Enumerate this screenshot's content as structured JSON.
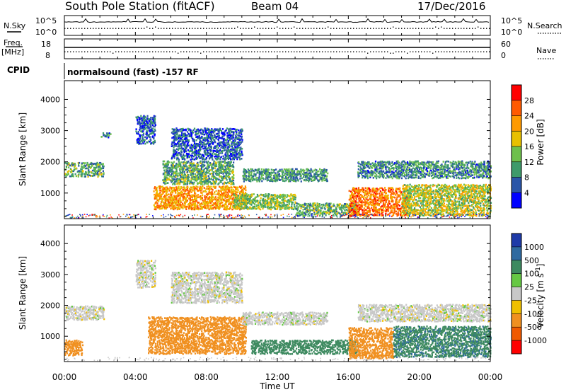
{
  "header": {
    "title": "South Pole Station (fitACF)",
    "beam": "Beam 04",
    "date": "17/Dec/2016"
  },
  "strip_panels": {
    "nsky": {
      "label": "N.Sky",
      "tick_top": "10^5",
      "tick_bottom": "10^0"
    },
    "nsearch": {
      "label": "N.Search",
      "tick_top": "10^5",
      "tick_bottom": "10^0"
    },
    "freq": {
      "label_line1": "Freq.",
      "label_line2": "[MHz]",
      "tick_top": "18",
      "tick_bottom": "8"
    },
    "nave": {
      "label": "Nave",
      "tick_top": "60",
      "tick_bottom": "0"
    },
    "cpid": {
      "label": "CPID",
      "value": "normalsound (fast) -157 RF"
    }
  },
  "x_axis": {
    "label": "Time UT",
    "ticks": [
      "00:00",
      "04:00",
      "08:00",
      "12:00",
      "16:00",
      "20:00",
      "00:00"
    ]
  },
  "power_panel": {
    "ylabel": "Slant Range [km]",
    "colorbar_label": "Power [dB]",
    "colorbar_ticks": [
      "28",
      "24",
      "20",
      "16",
      "12",
      "8",
      "4"
    ],
    "colorbar_colors": [
      "#ff0000",
      "#ff5a00",
      "#ff9a00",
      "#e8c000",
      "#6ec04c",
      "#3e9a6a",
      "#2a55a8",
      "#0000ff"
    ]
  },
  "velocity_panel": {
    "ylabel": "Slant Range [km]",
    "colorbar_label": "Velocity [m s",
    "colorbar_label_sup": "-1",
    "colorbar_label_end": "]",
    "colorbar_ticks": [
      "1000",
      "500",
      "100",
      "25",
      "-25",
      "-100",
      "-500",
      "-1000"
    ],
    "colorbar_colors": [
      "#1e3aa8",
      "#2f6aa0",
      "#3e8a60",
      "#66c844",
      "#c8c8c8",
      "#f0c000",
      "#f09020",
      "#f05a00",
      "#ff0000"
    ]
  },
  "y_axis": {
    "ticks": [
      "1000",
      "2000",
      "3000",
      "4000"
    ]
  },
  "chart_data": [
    {
      "type": "heatmap",
      "title": "South Pole Station (fitACF) Beam 04 17/Dec/2016",
      "xlabel": "Time UT",
      "ylabel": "Slant Range [km]",
      "xlim": [
        0,
        24
      ],
      "ylim": [
        180,
        4600
      ],
      "colorbar": "Power [dB]",
      "clim": [
        0,
        32
      ],
      "regions": [
        {
          "t0": 0.0,
          "t1": 2.2,
          "r0": 1550,
          "r1": 2000,
          "value": 12
        },
        {
          "t0": 2.0,
          "t1": 2.6,
          "r0": 2800,
          "r1": 2950,
          "value": 8
        },
        {
          "t0": 4.0,
          "t1": 5.1,
          "r0": 2600,
          "r1": 3500,
          "value": 6
        },
        {
          "t0": 5.0,
          "t1": 10.2,
          "r0": 500,
          "r1": 1250,
          "value": 22
        },
        {
          "t0": 5.5,
          "t1": 9.5,
          "r0": 1300,
          "r1": 2050,
          "value": 12
        },
        {
          "t0": 6.0,
          "t1": 10.0,
          "r0": 2100,
          "r1": 3100,
          "value": 6
        },
        {
          "t0": 9.5,
          "t1": 13.0,
          "r0": 500,
          "r1": 1000,
          "value": 14
        },
        {
          "t0": 10.0,
          "t1": 14.8,
          "r0": 1400,
          "r1": 1800,
          "value": 10
        },
        {
          "t0": 13.0,
          "t1": 16.5,
          "r0": 300,
          "r1": 700,
          "value": 12
        },
        {
          "t0": 16.0,
          "t1": 19.3,
          "r0": 300,
          "r1": 1200,
          "value": 24
        },
        {
          "t0": 16.5,
          "t1": 24.0,
          "r0": 1500,
          "r1": 2050,
          "value": 9
        },
        {
          "t0": 19.0,
          "t1": 24.0,
          "r0": 300,
          "r1": 1300,
          "value": 16
        }
      ]
    },
    {
      "type": "heatmap",
      "title": "",
      "xlabel": "Time UT",
      "ylabel": "Slant Range [km]",
      "xlim": [
        0,
        24
      ],
      "ylim": [
        180,
        4600
      ],
      "colorbar": "Velocity [m s-1]",
      "clim": [
        -1000,
        1000
      ],
      "regions": [
        {
          "t0": 0.0,
          "t1": 2.2,
          "r0": 1550,
          "r1": 2000,
          "value": 0
        },
        {
          "t0": 0.0,
          "t1": 1.0,
          "r0": 400,
          "r1": 900,
          "value": -300
        },
        {
          "t0": 4.0,
          "t1": 5.1,
          "r0": 2600,
          "r1": 3500,
          "value": 0
        },
        {
          "t0": 4.7,
          "t1": 10.2,
          "r0": 450,
          "r1": 1650,
          "value": -300
        },
        {
          "t0": 6.0,
          "t1": 10.0,
          "r0": 2100,
          "r1": 3100,
          "value": 0
        },
        {
          "t0": 10.0,
          "t1": 14.8,
          "r0": 1400,
          "r1": 1800,
          "value": 0
        },
        {
          "t0": 10.5,
          "t1": 16.5,
          "r0": 450,
          "r1": 900,
          "value": 200
        },
        {
          "t0": 16.0,
          "t1": 18.5,
          "r0": 300,
          "r1": 1300,
          "value": -300
        },
        {
          "t0": 18.5,
          "t1": 24.0,
          "r0": 350,
          "r1": 1350,
          "value": 400
        },
        {
          "t0": 16.5,
          "t1": 24.0,
          "r0": 1500,
          "r1": 2050,
          "value": 0
        }
      ]
    }
  ]
}
